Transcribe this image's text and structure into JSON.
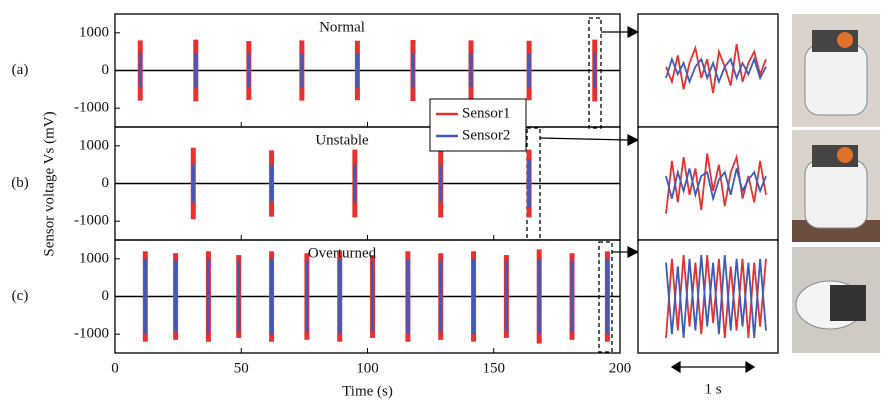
{
  "chart_data": [
    {
      "type": "burst",
      "label": "(a)",
      "title": "Normal",
      "xlim": [
        0,
        200
      ],
      "xticks": [
        0,
        50,
        100,
        150,
        200
      ],
      "ylim": [
        -1500,
        1500
      ],
      "yticks": [
        -1000,
        0,
        1000
      ],
      "x": [
        10,
        32,
        53,
        74,
        96,
        118,
        141,
        164,
        190
      ],
      "series": [
        {
          "color": "#e8312f",
          "values": [
            800,
            820,
            780,
            800,
            790,
            810,
            800,
            790,
            820
          ]
        },
        {
          "color": "#3b5bbf",
          "values": [
            450,
            460,
            440,
            450,
            450,
            460,
            440,
            450,
            470
          ]
        }
      ],
      "inset": [
        [
          100,
          -300,
          400,
          -500,
          200,
          600,
          -200,
          300,
          -600,
          500,
          100,
          -400,
          700,
          -300,
          200,
          500,
          -100,
          300
        ],
        [
          -200,
          300,
          -100,
          200,
          -300,
          100,
          300,
          -200,
          200,
          -300,
          100,
          300,
          -200,
          200,
          -100,
          300,
          -200,
          100
        ]
      ]
    },
    {
      "type": "burst",
      "label": "(b)",
      "title": "Unstable",
      "ylabel": "Sensor voltage Vs (mV)",
      "xlim": [
        0,
        200
      ],
      "xticks": [
        0,
        50,
        100,
        150,
        200
      ],
      "ylim": [
        -1500,
        1500
      ],
      "yticks": [
        -1000,
        0,
        1000
      ],
      "x": [
        31,
        62,
        95,
        129,
        164
      ],
      "series": [
        {
          "name": "Sensor1",
          "color": "#e8312f",
          "values": [
            950,
            880,
            900,
            900,
            900
          ]
        },
        {
          "name": "Sensor2",
          "color": "#3b5bbf",
          "values": [
            500,
            480,
            500,
            480,
            650
          ]
        }
      ],
      "inset": [
        [
          -800,
          600,
          -500,
          700,
          -300,
          400,
          -700,
          800,
          -200,
          500,
          -600,
          300,
          700,
          -400,
          200,
          -500,
          600,
          -300
        ],
        [
          200,
          -400,
          300,
          -200,
          400,
          -300,
          200,
          300,
          -400,
          100,
          300,
          -300,
          400,
          -200,
          100,
          300,
          -200,
          200
        ]
      ]
    },
    {
      "type": "burst",
      "label": "(c)",
      "title": "Overturned",
      "xlabel": "Time (s)",
      "inset_scale": "1 s",
      "xlim": [
        0,
        200
      ],
      "xticks": [
        0,
        50,
        100,
        150,
        200
      ],
      "ylim": [
        -1500,
        1500
      ],
      "yticks": [
        -1000,
        0,
        1000
      ],
      "x": [
        12,
        24,
        37,
        49,
        62,
        76,
        89,
        102,
        116,
        129,
        142,
        155,
        168,
        181,
        195
      ],
      "series": [
        {
          "color": "#e8312f",
          "values": [
            1200,
            1150,
            1200,
            1100,
            1200,
            1150,
            1200,
            1100,
            1200,
            1150,
            1200,
            1100,
            1250,
            1150,
            1200
          ]
        },
        {
          "color": "#3b5bbf",
          "values": [
            1000,
            950,
            1000,
            950,
            1000,
            950,
            1000,
            950,
            1000,
            950,
            1000,
            950,
            1000,
            950,
            1000
          ]
        }
      ],
      "inset": [
        [
          -1100,
          1000,
          -900,
          1100,
          -800,
          900,
          -1000,
          1100,
          -700,
          1000,
          -1100,
          800,
          -900,
          1000,
          -1100,
          900,
          -800,
          1000
        ],
        [
          900,
          -1000,
          800,
          -1100,
          1000,
          -900,
          1100,
          -800,
          900,
          -1000,
          1100,
          -900,
          1000,
          -800,
          900,
          -1100,
          1000,
          -900
        ]
      ]
    }
  ]
}
